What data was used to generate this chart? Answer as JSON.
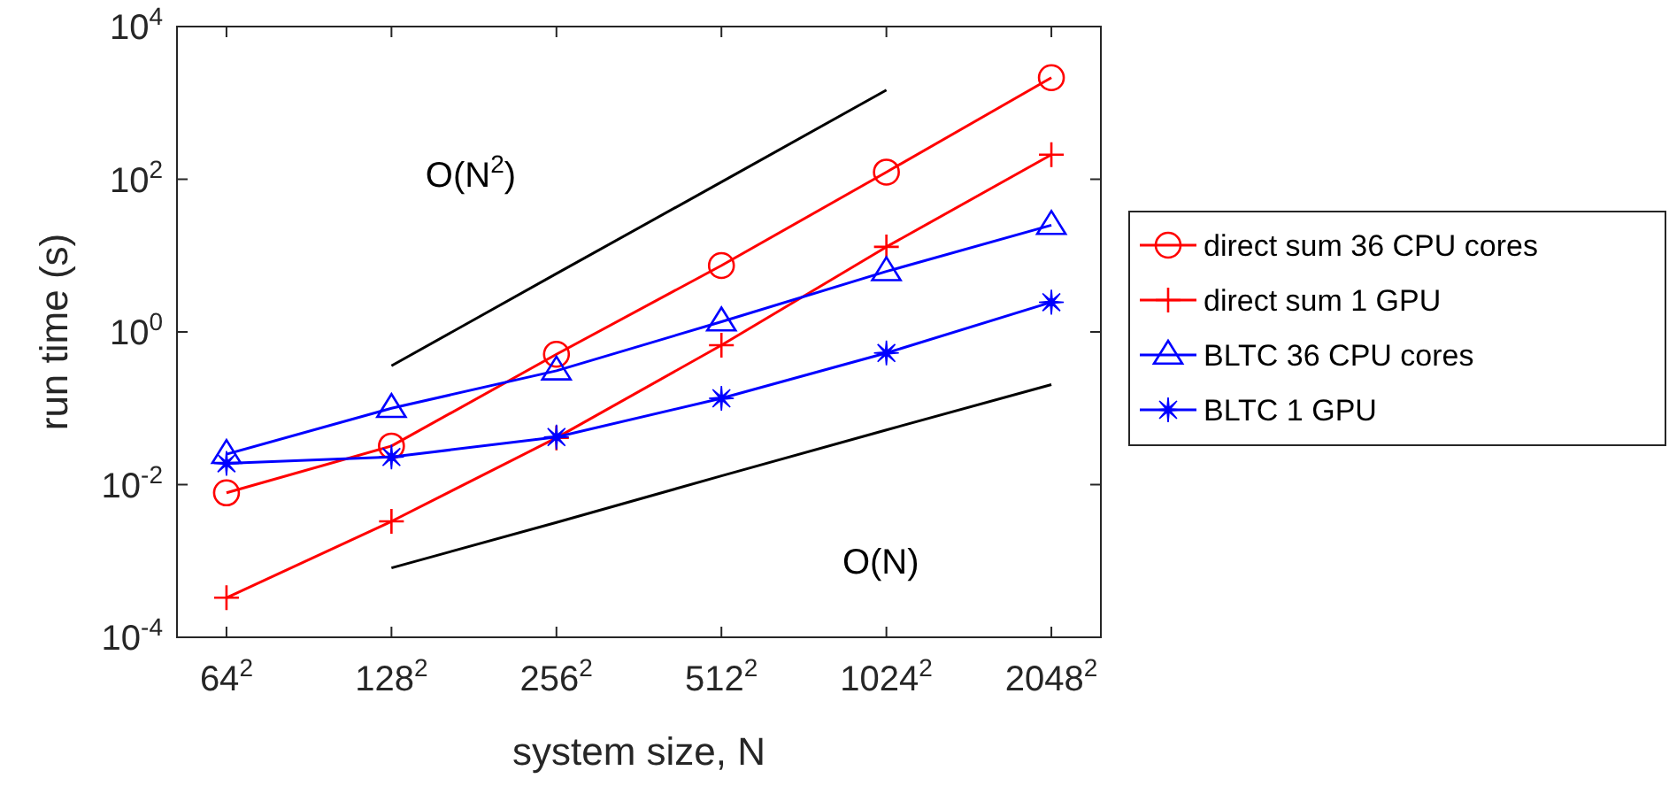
{
  "chart_data": {
    "type": "line",
    "xlabel": "system size, N",
    "ylabel": "run time (s)",
    "log": "y",
    "categories": [
      "64$^{2}$",
      "128$^{2}$",
      "256$^{2}$",
      "512$^{2}$",
      "1024$^{2}$",
      "2048$^{2}$"
    ],
    "ylim": [
      0.0001,
      10000
    ],
    "yticks": [
      {
        "value": 0.0001,
        "label": "10$^{-4}$"
      },
      {
        "value": 0.01,
        "label": "10$^{-2}$"
      },
      {
        "value": 1,
        "label": "10$^{0}$"
      },
      {
        "value": 100,
        "label": "10$^{2}$"
      },
      {
        "value": 10000,
        "label": "10$^{4}$"
      }
    ],
    "grid": false,
    "legend": "right",
    "series": [
      {
        "name": "direct sum 36 CPU cores",
        "color": "#ff0000",
        "marker": "circle",
        "values": [
          0.0078,
          0.032,
          0.51,
          7.4,
          124,
          2140
        ]
      },
      {
        "name": "direct sum 1 GPU",
        "color": "#ff0000",
        "marker": "cross",
        "values": [
          0.00033,
          0.0033,
          0.041,
          0.67,
          13,
          210
        ]
      },
      {
        "name": "BLTC 36 CPU cores",
        "color": "#0000ff",
        "marker": "triangle",
        "values": [
          0.025,
          0.1,
          0.31,
          1.36,
          6.2,
          25
        ]
      },
      {
        "name": "BLTC 1 GPU",
        "color": "#0000ff",
        "marker": "star",
        "values": [
          0.019,
          0.023,
          0.042,
          0.135,
          0.53,
          2.45
        ]
      },
      {
        "type": "line",
        "color": "#000000",
        "marker": "none",
        "values": [
          null,
          0.36,
          5.8,
          92,
          1475,
          null
        ]
      },
      {
        "type": "line",
        "color": "#000000",
        "marker": "none",
        "values": [
          null,
          0.00081,
          0.0032,
          0.013,
          0.052,
          0.204
        ]
      }
    ],
    "annotations": [
      "O(N$^{2}$)",
      "O(N)"
    ]
  }
}
